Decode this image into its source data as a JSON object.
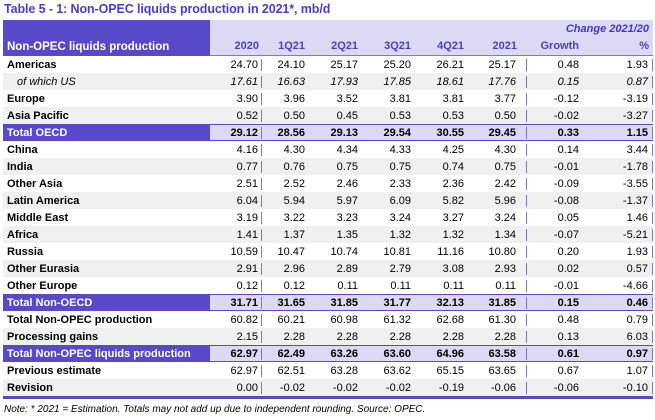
{
  "title": "Table 5 - 1: Non-OPEC liquids production in 2021*, mb/d",
  "header": {
    "row_label": "Non-OPEC liquids production",
    "change_label": "Change 2021/20",
    "columns": [
      "2020",
      "1Q21",
      "2Q21",
      "3Q21",
      "4Q21",
      "2021",
      "Growth",
      "%"
    ]
  },
  "table": {
    "rows": [
      {
        "label": "Americas",
        "type": "normal",
        "values": [
          "24.70",
          "24.10",
          "25.17",
          "25.20",
          "26.21",
          "25.17",
          "0.48",
          "1.93"
        ]
      },
      {
        "label": "of which US",
        "type": "sub",
        "values": [
          "17.61",
          "16.63",
          "17.93",
          "17.85",
          "18.61",
          "17.76",
          "0.15",
          "0.87"
        ]
      },
      {
        "label": "Europe",
        "type": "normal",
        "values": [
          "3.90",
          "3.96",
          "3.52",
          "3.81",
          "3.81",
          "3.77",
          "-0.12",
          "-3.19"
        ]
      },
      {
        "label": "Asia Pacific",
        "type": "normal",
        "values": [
          "0.52",
          "0.50",
          "0.45",
          "0.53",
          "0.53",
          "0.50",
          "-0.02",
          "-3.27"
        ]
      },
      {
        "label": "Total OECD",
        "type": "total",
        "values": [
          "29.12",
          "28.56",
          "29.13",
          "29.54",
          "30.55",
          "29.45",
          "0.33",
          "1.15"
        ]
      },
      {
        "label": "China",
        "type": "normal",
        "values": [
          "4.16",
          "4.30",
          "4.34",
          "4.33",
          "4.25",
          "4.30",
          "0.14",
          "3.44"
        ]
      },
      {
        "label": "India",
        "type": "normal",
        "values": [
          "0.77",
          "0.76",
          "0.75",
          "0.75",
          "0.74",
          "0.75",
          "-0.01",
          "-1.78"
        ]
      },
      {
        "label": "Other Asia",
        "type": "normal",
        "values": [
          "2.51",
          "2.52",
          "2.46",
          "2.33",
          "2.36",
          "2.42",
          "-0.09",
          "-3.55"
        ]
      },
      {
        "label": "Latin America",
        "type": "normal",
        "values": [
          "6.04",
          "5.94",
          "5.97",
          "6.09",
          "5.82",
          "5.96",
          "-0.08",
          "-1.37"
        ]
      },
      {
        "label": "Middle East",
        "type": "normal",
        "values": [
          "3.19",
          "3.22",
          "3.23",
          "3.24",
          "3.27",
          "3.24",
          "0.05",
          "1.46"
        ]
      },
      {
        "label": "Africa",
        "type": "normal",
        "values": [
          "1.41",
          "1.37",
          "1.35",
          "1.32",
          "1.32",
          "1.34",
          "-0.07",
          "-5.21"
        ]
      },
      {
        "label": "Russia",
        "type": "normal",
        "values": [
          "10.59",
          "10.47",
          "10.74",
          "10.81",
          "11.16",
          "10.80",
          "0.20",
          "1.93"
        ]
      },
      {
        "label": "Other Eurasia",
        "type": "normal",
        "values": [
          "2.91",
          "2.96",
          "2.89",
          "2.79",
          "3.08",
          "2.93",
          "0.02",
          "0.57"
        ]
      },
      {
        "label": "Other Europe",
        "type": "normal",
        "values": [
          "0.12",
          "0.12",
          "0.11",
          "0.11",
          "0.11",
          "0.11",
          "-0.01",
          "-4.66"
        ]
      },
      {
        "label": "Total Non-OECD",
        "type": "total",
        "values": [
          "31.71",
          "31.65",
          "31.85",
          "31.77",
          "32.13",
          "31.85",
          "0.15",
          "0.46"
        ]
      },
      {
        "label": "Total Non-OPEC production",
        "type": "normal",
        "values": [
          "60.82",
          "60.21",
          "60.98",
          "61.32",
          "62.68",
          "61.30",
          "0.48",
          "0.79"
        ]
      },
      {
        "label": "Processing gains",
        "type": "normal",
        "values": [
          "2.15",
          "2.28",
          "2.28",
          "2.28",
          "2.28",
          "2.28",
          "0.13",
          "6.03"
        ]
      },
      {
        "label": "Total Non-OPEC liquids production",
        "type": "total",
        "values": [
          "62.97",
          "62.49",
          "63.26",
          "63.60",
          "64.96",
          "63.58",
          "0.61",
          "0.97"
        ]
      },
      {
        "label": "Previous estimate",
        "type": "normal",
        "values": [
          "62.97",
          "62.51",
          "63.28",
          "63.62",
          "65.15",
          "63.65",
          "0.67",
          "1.07"
        ]
      },
      {
        "label": "Revision",
        "type": "normal",
        "values": [
          "0.00",
          "-0.02",
          "-0.02",
          "-0.02",
          "-0.19",
          "-0.06",
          "-0.06",
          "-0.10"
        ]
      }
    ]
  },
  "note": "Note: * 2021 = Estimation. Totals may not add up due to independent rounding. Source: OPEC.",
  "colors": {
    "header_purple": "#5849c9",
    "lavender_band": "#ddd8f3",
    "stripe_gray": "#f0f0f0",
    "title_blue": "#4b3bd6",
    "grid_purple": "#8074d8"
  }
}
